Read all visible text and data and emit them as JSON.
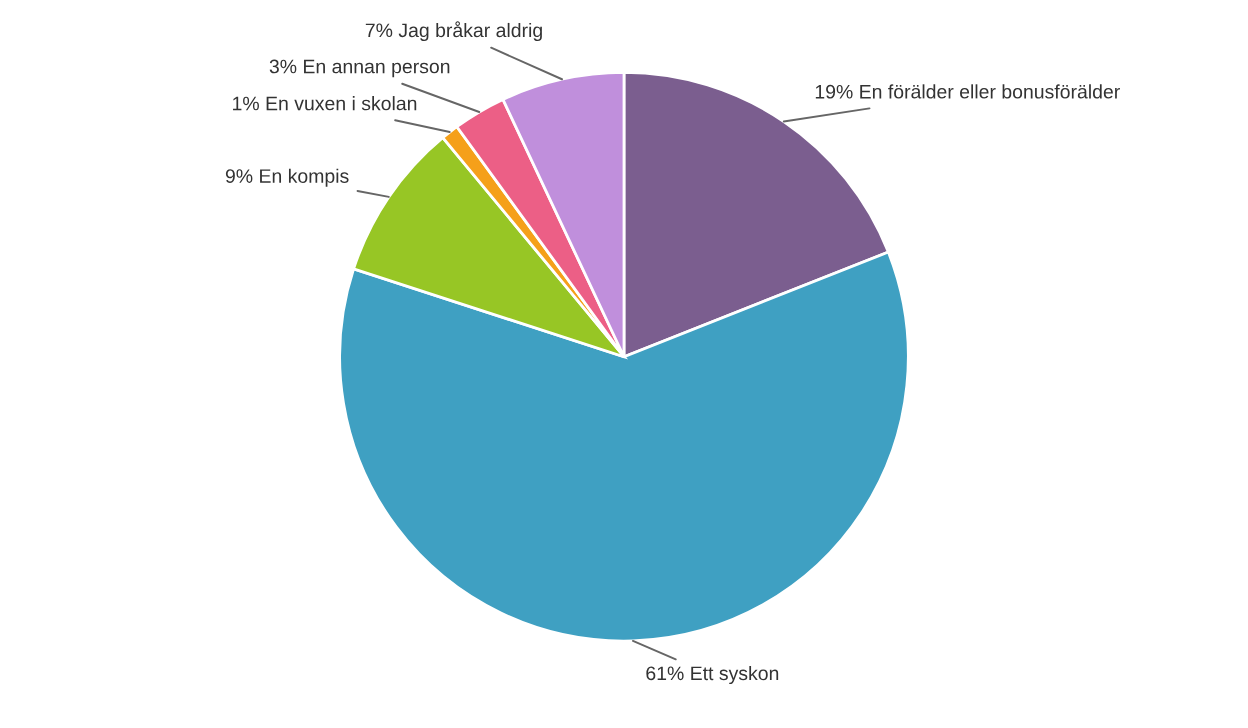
{
  "chart_data": {
    "type": "pie",
    "categories": [
      "En förälder eller bonusförälder",
      "Ett syskon",
      "En kompis",
      "En vuxen i skolan",
      "En annan person",
      "Jag bråkar aldrig"
    ],
    "values": [
      19,
      61,
      9,
      1,
      3,
      7
    ],
    "value_labels": [
      "19%",
      "61%",
      "9%",
      "1%",
      "3%",
      "7%"
    ],
    "colors": [
      "#7b5e8f",
      "#3fa0c2",
      "#97c625",
      "#f5a01a",
      "#ec5f86",
      "#c08fdc"
    ],
    "legend": false
  }
}
